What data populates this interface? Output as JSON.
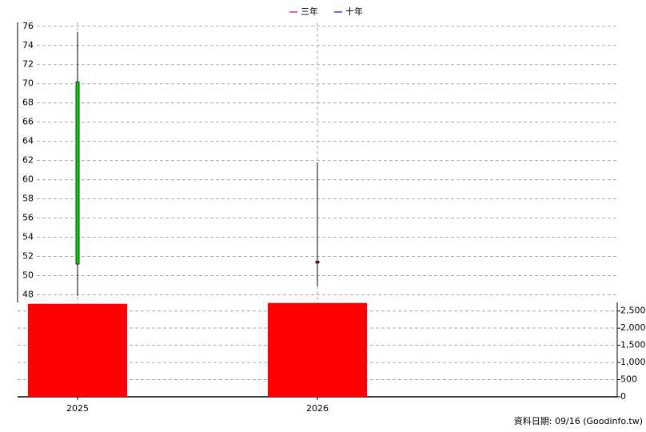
{
  "chart_data": {
    "type": "candlestick",
    "legend": [
      {
        "name": "三年",
        "color": "#cc3377"
      },
      {
        "name": "十年",
        "color": "#6633cc"
      }
    ],
    "categories": [
      "2025",
      "2026"
    ],
    "open": [
      70.2,
      51.3
    ],
    "high": [
      75.4,
      61.8
    ],
    "low": [
      47.9,
      48.9
    ],
    "close": [
      51.2,
      51.5
    ],
    "up_color": "#ff0000",
    "down_color": "#00dd00",
    "ylim": [
      47.2,
      76.4
    ],
    "yticks": [
      48,
      50,
      52,
      54,
      56,
      58,
      60,
      62,
      64,
      66,
      68,
      70,
      72,
      74,
      76
    ],
    "volume": {
      "values": [
        2710,
        2734
      ],
      "color": "#ff0000",
      "ylim": [
        0,
        2750
      ],
      "yticks": [
        0,
        500,
        {
          "value": 1000,
          "label": "1,000"
        },
        {
          "value": 1500,
          "label": "1,500"
        },
        {
          "value": 2000,
          "label": "2,000"
        },
        {
          "value": 2500,
          "label": "2,500"
        }
      ]
    },
    "grid": true,
    "footer": "資料日期: 09/16  (Goodinfo.tw)"
  }
}
